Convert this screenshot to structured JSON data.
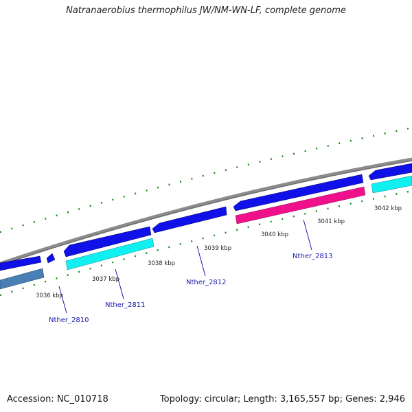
{
  "title": "Natranaerobius thermophilus JW/NM-WN-LF, complete genome",
  "accession": "Accession: NC_010718",
  "summary": "Topology: circular; Length: 3,165,557 bp; Genes: 2,946",
  "colors": {
    "backbone": "#8c8c8c",
    "forward_gene": "#1010e8",
    "reverse_cds_cyan": "#10f0f0",
    "reverse_cds_magenta": "#f0108c",
    "reverse_cds_steel": "#4a7fb5",
    "tick": "#1a8a1a",
    "gene_label": "#1a1aaa",
    "scale_label": "#222222"
  },
  "scale_labels": [
    "3036 kbp",
    "3037 kbp",
    "3038 kbp",
    "3039 kbp",
    "3040 kbp",
    "3041 kbp",
    "3042 kbp"
  ],
  "gene_labels": [
    "Nther_2810",
    "Nther_2811",
    "Nther_2812",
    "Nther_2813"
  ]
}
